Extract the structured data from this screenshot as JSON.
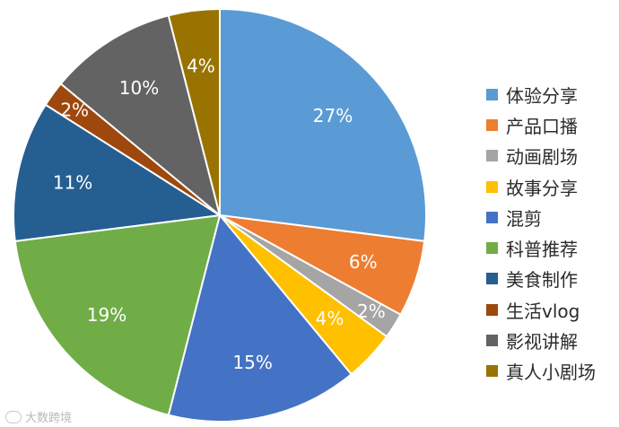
{
  "chart_data": {
    "type": "pie",
    "slices": [
      {
        "label": "体验分享",
        "value": 27,
        "value_label": "27%",
        "color": "#5b9bd5"
      },
      {
        "label": "产品口播",
        "value": 6,
        "value_label": "6%",
        "color": "#ed7d31"
      },
      {
        "label": "动画剧场",
        "value": 2,
        "value_label": "2%",
        "color": "#a5a5a5"
      },
      {
        "label": "故事分享",
        "value": 4,
        "value_label": "4%",
        "color": "#ffc000"
      },
      {
        "label": "混剪",
        "value": 15,
        "value_label": "15%",
        "color": "#4472c4"
      },
      {
        "label": "科普推荐",
        "value": 19,
        "value_label": "19%",
        "color": "#70ad47"
      },
      {
        "label": "美食制作",
        "value": 11,
        "value_label": "11%",
        "color": "#255e91"
      },
      {
        "label": "生活vlog",
        "value": 2,
        "value_label": "2%",
        "color": "#9e480e"
      },
      {
        "label": "影视讲解",
        "value": 10,
        "value_label": "10%",
        "color": "#636363"
      },
      {
        "label": "真人小剧场",
        "value": 4,
        "value_label": "4%",
        "color": "#997300"
      }
    ],
    "legend_position": "right"
  },
  "watermark": {
    "text": "大数跨境"
  }
}
